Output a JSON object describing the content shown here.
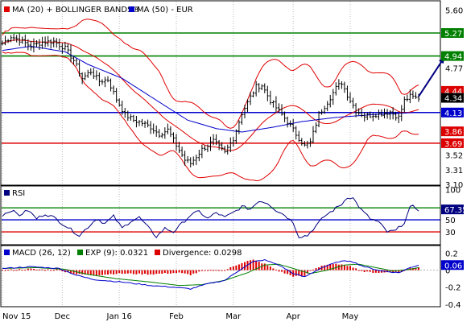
{
  "chart_data": [
    {
      "panel": "price",
      "type": "line",
      "legend": [
        {
          "label": "MA (20) + BOLLINGER BANDS®",
          "color": "#e00000"
        },
        {
          "label": "MA (50) - EUR",
          "color": "#0000cc"
        }
      ],
      "ylim": [
        3.1,
        5.72
      ],
      "y_ticks": [
        "5.60",
        "5.27",
        "4.94",
        "4.77",
        "4.44",
        "4.34",
        "4.13",
        "3.86",
        "3.69",
        "3.52",
        "3.31",
        "3.10"
      ],
      "x_ticks": [
        {
          "label": "Nov 15",
          "x": 0
        },
        {
          "label": "Dec",
          "x": 21
        },
        {
          "label": "Jan 16",
          "x": 41
        },
        {
          "label": "Feb",
          "x": 61
        },
        {
          "label": "Mar",
          "x": 81
        },
        {
          "label": "Apr",
          "x": 102
        },
        {
          "label": "May",
          "x": 122
        }
      ],
      "levels": [
        {
          "value": 5.27,
          "label": "5.27",
          "color": "#008000"
        },
        {
          "value": 4.94,
          "label": "4.94",
          "color": "#008000"
        },
        {
          "value": 4.13,
          "label": "4.13",
          "color": "#0000cc"
        },
        {
          "value": 3.69,
          "label": "3.69",
          "color": "#dd0000"
        }
      ],
      "tags": [
        {
          "value": 4.44,
          "label": "4.44",
          "color": "#dd0000"
        },
        {
          "value": 4.34,
          "label": "4.34",
          "color": "#000000"
        },
        {
          "value": 3.86,
          "label": "3.86",
          "color": "#dd0000"
        }
      ],
      "close_anchors": [
        [
          0,
          5.12
        ],
        [
          3,
          5.22
        ],
        [
          6,
          5.17
        ],
        [
          10,
          5.08
        ],
        [
          14,
          5.14
        ],
        [
          18,
          5.15
        ],
        [
          22,
          5.05
        ],
        [
          25,
          4.88
        ],
        [
          28,
          4.62
        ],
        [
          31,
          4.72
        ],
        [
          34,
          4.58
        ],
        [
          37,
          4.6
        ],
        [
          40,
          4.32
        ],
        [
          43,
          4.1
        ],
        [
          46,
          4.02
        ],
        [
          49,
          3.98
        ],
        [
          52,
          3.92
        ],
        [
          55,
          3.82
        ],
        [
          58,
          3.88
        ],
        [
          61,
          3.66
        ],
        [
          64,
          3.45
        ],
        [
          66,
          3.4
        ],
        [
          70,
          3.6
        ],
        [
          74,
          3.72
        ],
        [
          78,
          3.55
        ],
        [
          81,
          3.76
        ],
        [
          84,
          4.12
        ],
        [
          87,
          4.35
        ],
        [
          89,
          4.5
        ],
        [
          91,
          4.52
        ],
        [
          94,
          4.3
        ],
        [
          97,
          4.15
        ],
        [
          100,
          4.0
        ],
        [
          103,
          3.82
        ],
        [
          106,
          3.65
        ],
        [
          108,
          3.7
        ],
        [
          111,
          4.1
        ],
        [
          114,
          4.28
        ],
        [
          117,
          4.48
        ],
        [
          119,
          4.56
        ],
        [
          121,
          4.38
        ],
        [
          124,
          4.16
        ],
        [
          127,
          4.08
        ],
        [
          130,
          4.1
        ],
        [
          133,
          4.12
        ],
        [
          136,
          4.14
        ],
        [
          139,
          4.06
        ],
        [
          141,
          4.3
        ],
        [
          143,
          4.36
        ],
        [
          145,
          4.34
        ]
      ],
      "ma50_anchors": [
        [
          0,
          5.02
        ],
        [
          10,
          5.08
        ],
        [
          22,
          5.0
        ],
        [
          30,
          4.82
        ],
        [
          42,
          4.62
        ],
        [
          55,
          4.28
        ],
        [
          65,
          4.02
        ],
        [
          75,
          3.9
        ],
        [
          84,
          3.85
        ],
        [
          95,
          3.92
        ],
        [
          105,
          4.0
        ],
        [
          117,
          4.06
        ],
        [
          130,
          4.1
        ],
        [
          145,
          4.13
        ]
      ],
      "forecast_arrow": {
        "from": [
          146,
          4.36
        ],
        "to": [
          155,
          4.92
        ]
      },
      "n_days": 146
    },
    {
      "panel": "rsi",
      "type": "line",
      "legend": [
        {
          "label": "RSI",
          "color": "#000080"
        }
      ],
      "ylim": [
        10,
        105
      ],
      "y_ticks": [
        "100",
        "70",
        "50",
        "30"
      ],
      "levels": [
        {
          "value": 70,
          "color": "#008000"
        },
        {
          "value": 50,
          "color": "#0000cc"
        },
        {
          "value": 30,
          "color": "#dd0000"
        }
      ],
      "tags": [
        {
          "value": 67.35,
          "label": "67.35",
          "color": "#000080"
        }
      ],
      "anchors": [
        [
          0,
          58
        ],
        [
          3,
          66
        ],
        [
          6,
          58
        ],
        [
          9,
          66
        ],
        [
          12,
          52
        ],
        [
          15,
          60
        ],
        [
          18,
          54
        ],
        [
          21,
          44
        ],
        [
          24,
          34
        ],
        [
          27,
          24
        ],
        [
          30,
          38
        ],
        [
          33,
          52
        ],
        [
          36,
          44
        ],
        [
          39,
          56
        ],
        [
          42,
          36
        ],
        [
          45,
          48
        ],
        [
          48,
          54
        ],
        [
          51,
          38
        ],
        [
          54,
          22
        ],
        [
          57,
          36
        ],
        [
          60,
          30
        ],
        [
          63,
          44
        ],
        [
          66,
          58
        ],
        [
          69,
          64
        ],
        [
          72,
          52
        ],
        [
          75,
          62
        ],
        [
          78,
          54
        ],
        [
          81,
          62
        ],
        [
          84,
          72
        ],
        [
          87,
          68
        ],
        [
          90,
          82
        ],
        [
          93,
          78
        ],
        [
          96,
          66
        ],
        [
          99,
          58
        ],
        [
          102,
          46
        ],
        [
          104,
          22
        ],
        [
          107,
          24
        ],
        [
          110,
          40
        ],
        [
          113,
          56
        ],
        [
          116,
          66
        ],
        [
          119,
          76
        ],
        [
          121,
          88
        ],
        [
          123,
          86
        ],
        [
          126,
          66
        ],
        [
          129,
          52
        ],
        [
          132,
          46
        ],
        [
          135,
          30
        ],
        [
          138,
          32
        ],
        [
          141,
          46
        ],
        [
          143,
          70
        ],
        [
          144,
          72
        ],
        [
          146,
          67
        ]
      ]
    },
    {
      "panel": "macd",
      "type": "line",
      "legend": [
        {
          "label": "MACD (26, 12)",
          "color": "#0000cc"
        },
        {
          "label": "EXP (9): 0.0321",
          "color": "#008000"
        },
        {
          "label": "Divergence: 0.0298",
          "color": "#dd0000"
        }
      ],
      "ylim": [
        -0.42,
        0.28
      ],
      "y_ticks": [
        "0.2",
        "0",
        "-0.2",
        "-0.4"
      ],
      "tags": [
        {
          "value": 0.06,
          "label": "0.06",
          "color": "#0000cc"
        }
      ],
      "macd_anchors": [
        [
          0,
          0.02
        ],
        [
          10,
          0.04
        ],
        [
          20,
          0.02
        ],
        [
          26,
          -0.06
        ],
        [
          32,
          -0.11
        ],
        [
          42,
          -0.14
        ],
        [
          52,
          -0.18
        ],
        [
          60,
          -0.2
        ],
        [
          66,
          -0.22
        ],
        [
          72,
          -0.16
        ],
        [
          78,
          -0.12
        ],
        [
          84,
          0.02
        ],
        [
          88,
          0.1
        ],
        [
          92,
          0.12
        ],
        [
          97,
          0.06
        ],
        [
          102,
          -0.04
        ],
        [
          106,
          -0.08
        ],
        [
          112,
          0.03
        ],
        [
          118,
          0.1
        ],
        [
          122,
          0.11
        ],
        [
          127,
          0.04
        ],
        [
          133,
          -0.01
        ],
        [
          139,
          -0.03
        ],
        [
          143,
          0.03
        ],
        [
          146,
          0.06
        ]
      ],
      "exp_anchors": [
        [
          0,
          0.02
        ],
        [
          12,
          0.03
        ],
        [
          22,
          0.01
        ],
        [
          30,
          -0.05
        ],
        [
          40,
          -0.1
        ],
        [
          52,
          -0.14
        ],
        [
          62,
          -0.18
        ],
        [
          70,
          -0.17
        ],
        [
          78,
          -0.12
        ],
        [
          86,
          -0.03
        ],
        [
          92,
          0.06
        ],
        [
          97,
          0.07
        ],
        [
          103,
          0.01
        ],
        [
          108,
          -0.04
        ],
        [
          114,
          0.0
        ],
        [
          120,
          0.06
        ],
        [
          125,
          0.07
        ],
        [
          131,
          0.03
        ],
        [
          137,
          -0.01
        ],
        [
          143,
          0.01
        ],
        [
          146,
          0.03
        ]
      ]
    }
  ]
}
